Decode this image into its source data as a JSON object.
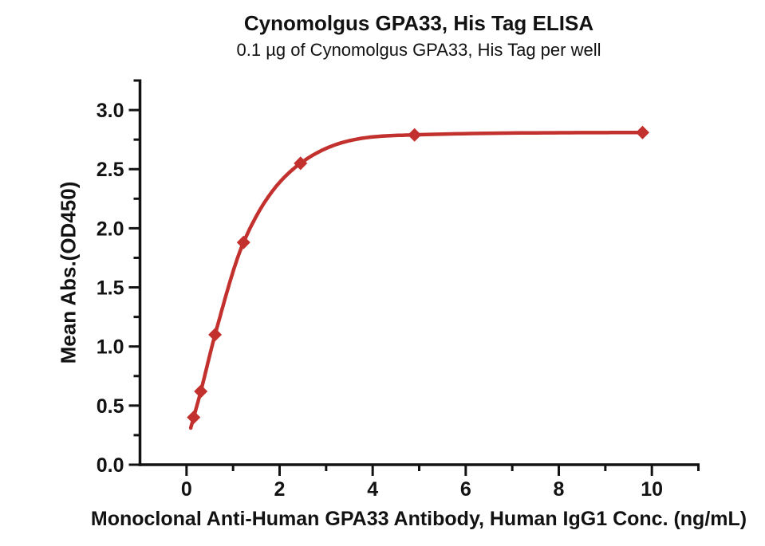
{
  "chart_data": {
    "type": "scatter",
    "title": "Cynomolgus GPA33, His Tag ELISA",
    "subtitle": "0.1 µg of Cynomolgus GPA33, His Tag per well",
    "xlabel": "Monoclonal Anti-Human GPA33 Antibody, Human IgG1 Conc. (ng/mL)",
    "ylabel": "Mean Abs.(OD450)",
    "xlim": [
      -1,
      11
    ],
    "ylim": [
      0,
      3.25
    ],
    "grid": false,
    "legend": "none",
    "x_major_ticks": [
      {
        "v": 0,
        "label": "0"
      },
      {
        "v": 2,
        "label": "2"
      },
      {
        "v": 4,
        "label": "4"
      },
      {
        "v": 6,
        "label": "6"
      },
      {
        "v": 8,
        "label": "8"
      },
      {
        "v": 10,
        "label": "10"
      }
    ],
    "x_minor_ticks": [
      1,
      3,
      5,
      7,
      9,
      11
    ],
    "y_major_ticks": [
      {
        "v": 0,
        "label": "0.0"
      },
      {
        "v": 0.5,
        "label": "0.5"
      },
      {
        "v": 1,
        "label": "1.0"
      },
      {
        "v": 1.5,
        "label": "1.5"
      },
      {
        "v": 2,
        "label": "2.0"
      },
      {
        "v": 2.5,
        "label": "2.5"
      },
      {
        "v": 3,
        "label": "3.0"
      }
    ],
    "y_minor_ticks": [
      0.25,
      0.75,
      1.25,
      1.75,
      2.25,
      2.75,
      3.25
    ],
    "series": [
      {
        "marker": "diamond",
        "color": "#C2312D",
        "curve_start": {
          "x": 0.09,
          "y": 0.31
        },
        "points": [
          {
            "x": 0.153,
            "y": 0.4
          },
          {
            "x": 0.306,
            "y": 0.62
          },
          {
            "x": 0.613,
            "y": 1.1
          },
          {
            "x": 1.225,
            "y": 1.88
          },
          {
            "x": 2.45,
            "y": 2.55
          },
          {
            "x": 4.9,
            "y": 2.79
          },
          {
            "x": 9.8,
            "y": 2.81
          }
        ]
      }
    ],
    "colors": {
      "accent_red": "#C2312D",
      "text": "#121212",
      "axis": "#121212",
      "background": "#FFFFFF"
    }
  }
}
